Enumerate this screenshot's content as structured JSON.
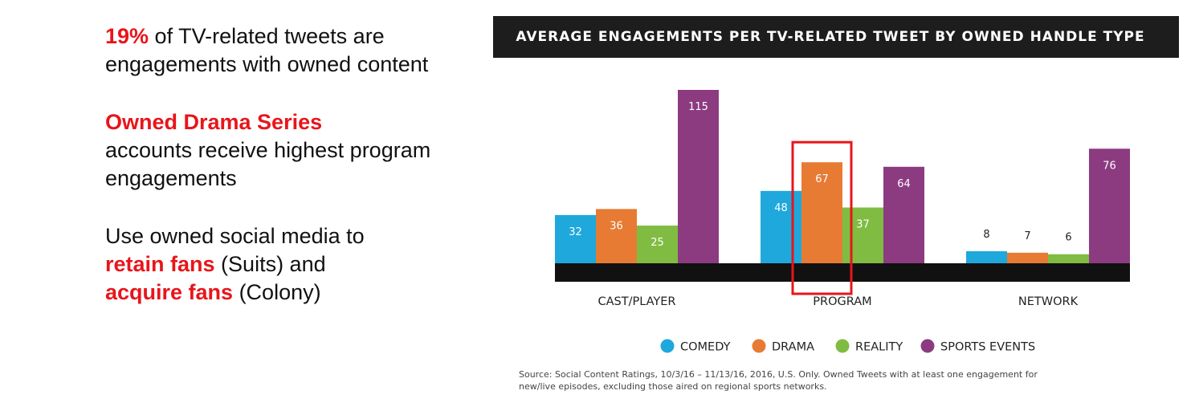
{
  "left_panel": {
    "p1_highlight": "19%",
    "p1_rest": " of TV-related tweets are engagements with owned content",
    "p2_highlight": "Owned Drama Series",
    "p2_rest": "accounts receive highest program engagements",
    "p3_text": "Use owned social media to",
    "p3_highlight1": "retain fans",
    "p3_mid": " (Suits) and",
    "p3_highlight2": "acquire fans",
    "p3_end": " (Colony)"
  },
  "source": "Source: Social Content Ratings, 10/3/16 – 11/13/16, 2016, U.S. Only. Owned Tweets with at least one engagement for new/live episodes, excluding those aired on regional sports networks.",
  "colors": {
    "comedy": "#1fa8dc",
    "drama": "#e77b34",
    "reality": "#80bc42",
    "sports": "#8c3b81",
    "highlight": "#e8151b",
    "title_bar": "#1d1d1d"
  },
  "chart_data": {
    "type": "bar",
    "title": "AVERAGE ENGAGEMENTS PER TV-RELATED TWEET BY OWNED HANDLE TYPE",
    "categories": [
      "CAST/PLAYER",
      "PROGRAM",
      "NETWORK"
    ],
    "series": [
      {
        "name": "COMEDY",
        "values": [
          32,
          48,
          8
        ]
      },
      {
        "name": "DRAMA",
        "values": [
          36,
          67,
          7
        ]
      },
      {
        "name": "REALITY",
        "values": [
          25,
          37,
          6
        ]
      },
      {
        "name": "SPORTS EVENTS",
        "values": [
          115,
          64,
          76
        ]
      }
    ],
    "ylim": [
      0,
      115
    ],
    "grid": false,
    "legend": "bottom",
    "highlight": {
      "category": "PROGRAM",
      "series": "DRAMA"
    }
  }
}
